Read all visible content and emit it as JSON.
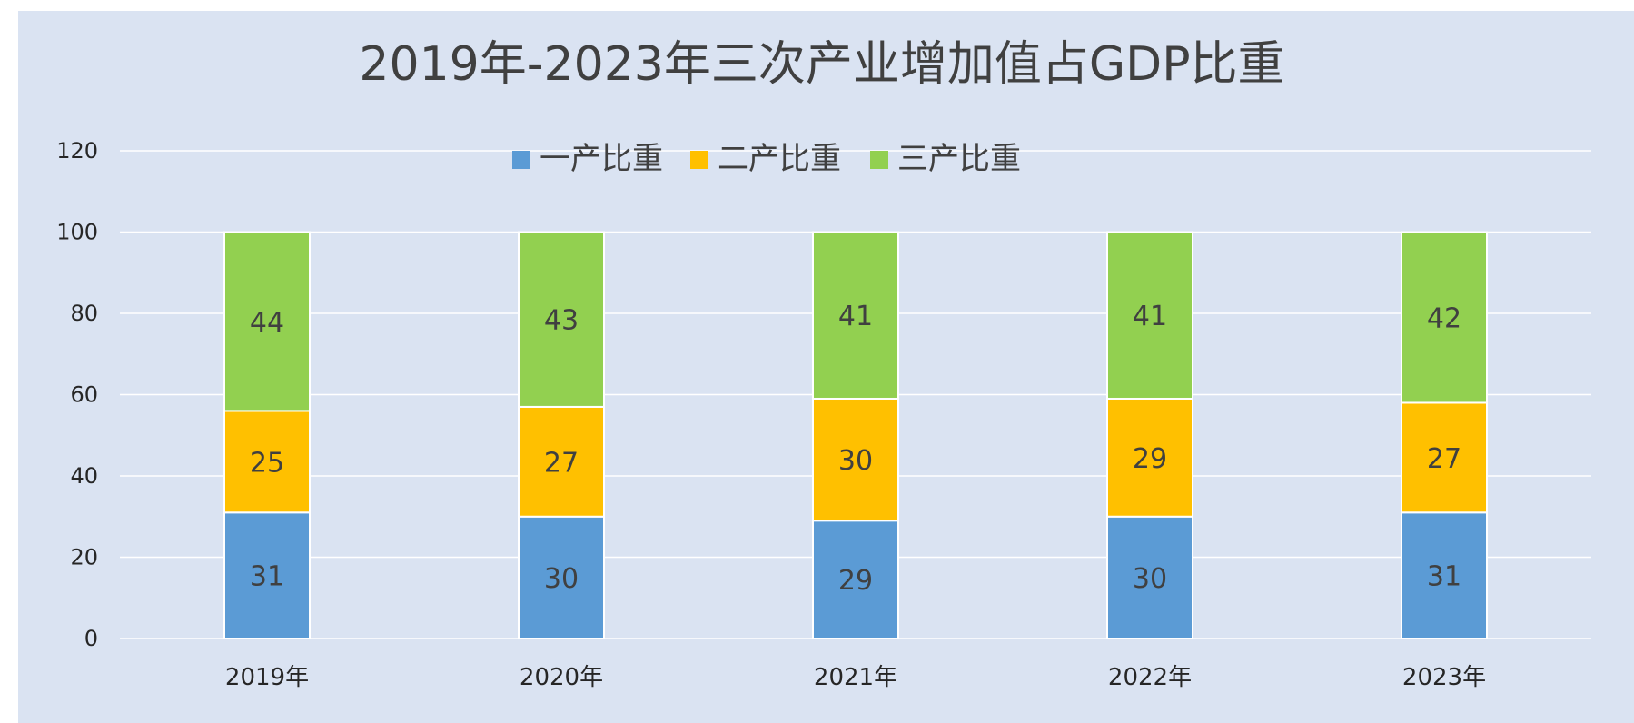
{
  "chart_data": {
    "type": "bar",
    "stacked": true,
    "title": "2019年-2023年三次产业增加值占GDP比重",
    "categories": [
      "2019年",
      "2020年",
      "2021年",
      "2022年",
      "2023年"
    ],
    "series": [
      {
        "name": "一产比重",
        "values": [
          31,
          30,
          29,
          30,
          31
        ],
        "color": "#5b9bd5"
      },
      {
        "name": "二产比重",
        "values": [
          25,
          27,
          30,
          29,
          27
        ],
        "color": "#ffc000"
      },
      {
        "name": "三产比重",
        "values": [
          44,
          43,
          41,
          41,
          42
        ],
        "color": "#92d050"
      }
    ],
    "ylim": [
      0,
      120
    ],
    "yticks": [
      "0",
      "20",
      "40",
      "60",
      "80",
      "100",
      "120"
    ],
    "ytick_values": [
      0,
      20,
      40,
      60,
      80,
      100,
      120
    ],
    "grid": true,
    "legend_position": "top-center",
    "colors": {
      "background": "#dae3f2",
      "gridline": "#ffffff",
      "text": "#404040"
    }
  }
}
